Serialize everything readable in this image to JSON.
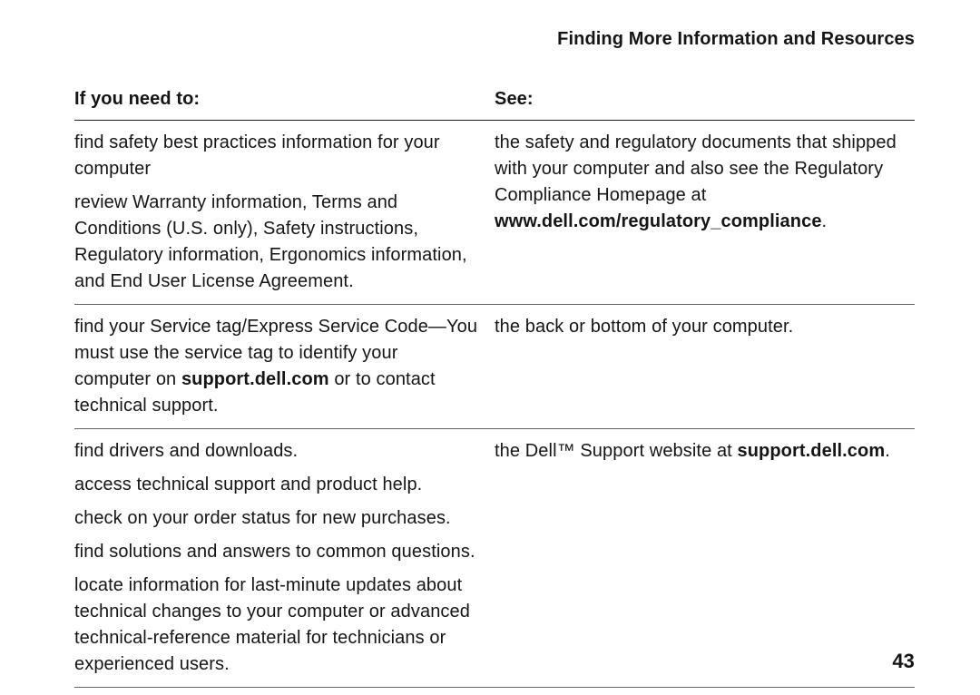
{
  "page": {
    "header": "Finding More Information and Resources",
    "number": "43"
  },
  "table": {
    "headers": {
      "left": "If you need to:",
      "right": "See:"
    },
    "row1": {
      "left_p1": "find safety best practices information for your computer",
      "left_p2": "review Warranty information, Terms and Conditions (U.S. only), Safety instructions, Regulatory information, Ergonomics information, and End User License Agreement.",
      "right_pre": "the safety and regulatory documents that shipped with your computer and also see the Regulatory Compliance Homepage at ",
      "right_bold": "www.dell.com/regulatory_compliance",
      "right_post": "."
    },
    "row2": {
      "left_pre": "find your Service tag/Express Service Code—You must use the service tag to identify your computer on ",
      "left_bold": "support.dell.com",
      "left_post": " or to contact technical support.",
      "right": "the back or bottom of your computer."
    },
    "row3": {
      "left_p1": "find drivers and downloads.",
      "left_p2": "access technical support and product help.",
      "left_p3": "check on your order status for new purchases.",
      "left_p4": "find solutions and answers to common questions.",
      "left_p5": "locate information for last-minute updates about technical changes to your computer or advanced technical-reference material for technicians or experienced users.",
      "right_pre": "the Dell™ Support website at ",
      "right_bold": "support.dell.com",
      "right_post": "."
    }
  }
}
